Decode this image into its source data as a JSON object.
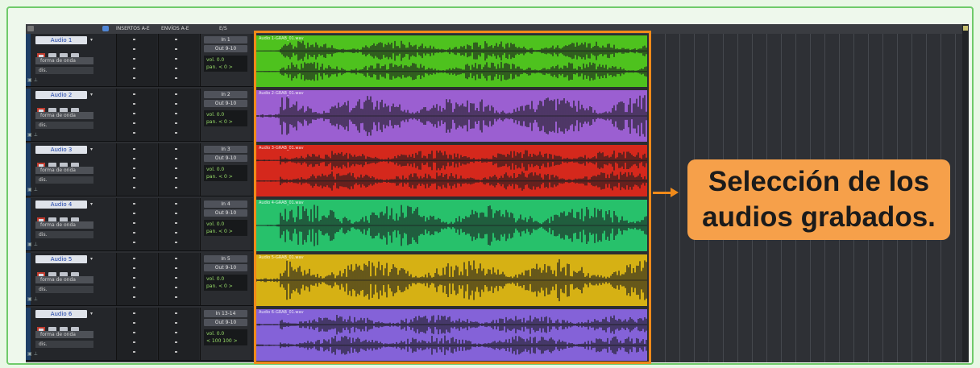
{
  "header": {
    "col_inserts": "INSERTOS A-E",
    "col_sends": "ENVÍOS A-E",
    "col_io": "E/S"
  },
  "tracks": [
    {
      "name": "Audio 1",
      "mode": "forma de onda",
      "dis": "dis.",
      "io_in": "In 1",
      "io_out": "Out 9-10",
      "vol": "vol.  0.0",
      "pan": "pan.  < 0 >",
      "color": "#4ec21e",
      "clip_label": "Audio 1-GRAB_01.wav"
    },
    {
      "name": "Audio 2",
      "mode": "forma de onda",
      "dis": "dis.",
      "io_in": "In 2",
      "io_out": "Out 9-10",
      "vol": "vol.  0.0",
      "pan": "pan.  < 0 >",
      "color": "#9b5fd1",
      "clip_label": "Audio 2-GRAB_01.wav"
    },
    {
      "name": "Audio 3",
      "mode": "forma de onda",
      "dis": "dis.",
      "io_in": "In 3",
      "io_out": "Out 9-10",
      "vol": "vol.  0.0",
      "pan": "pan.  < 0 >",
      "color": "#d5281c",
      "clip_label": "Audio 3-GRAB_01.wav"
    },
    {
      "name": "Audio 4",
      "mode": "forma de onda",
      "dis": "dis.",
      "io_in": "In 4",
      "io_out": "Out 9-10",
      "vol": "vol.  0.0",
      "pan": "pan.  < 0 >",
      "color": "#27c16b",
      "clip_label": "Audio 4-GRAB_01.wav"
    },
    {
      "name": "Audio 5",
      "mode": "forma de onda",
      "dis": "dis.",
      "io_in": "In 5",
      "io_out": "Out 9-10",
      "vol": "vol.  0.0",
      "pan": "pan.  < 0 >",
      "color": "#d6b114",
      "clip_label": "Audio 5-GRAB_01.wav"
    },
    {
      "name": "Audio 6",
      "mode": "forma de onda",
      "dis": "dis.",
      "io_in": "In 13-14",
      "io_out": "Out 9-10",
      "vol": "vol.  0.0",
      "pan": "< 100  100 >",
      "color": "#8462d8",
      "clip_label": "Audio 6-GRAB_01.wav"
    }
  ],
  "callout": {
    "text_line1": "Selección de los",
    "text_line2": "audios grabados."
  },
  "colors": {
    "selection": "#f08a1a",
    "callout_bg": "#f6a04a",
    "frame_border": "#6fca6a"
  }
}
